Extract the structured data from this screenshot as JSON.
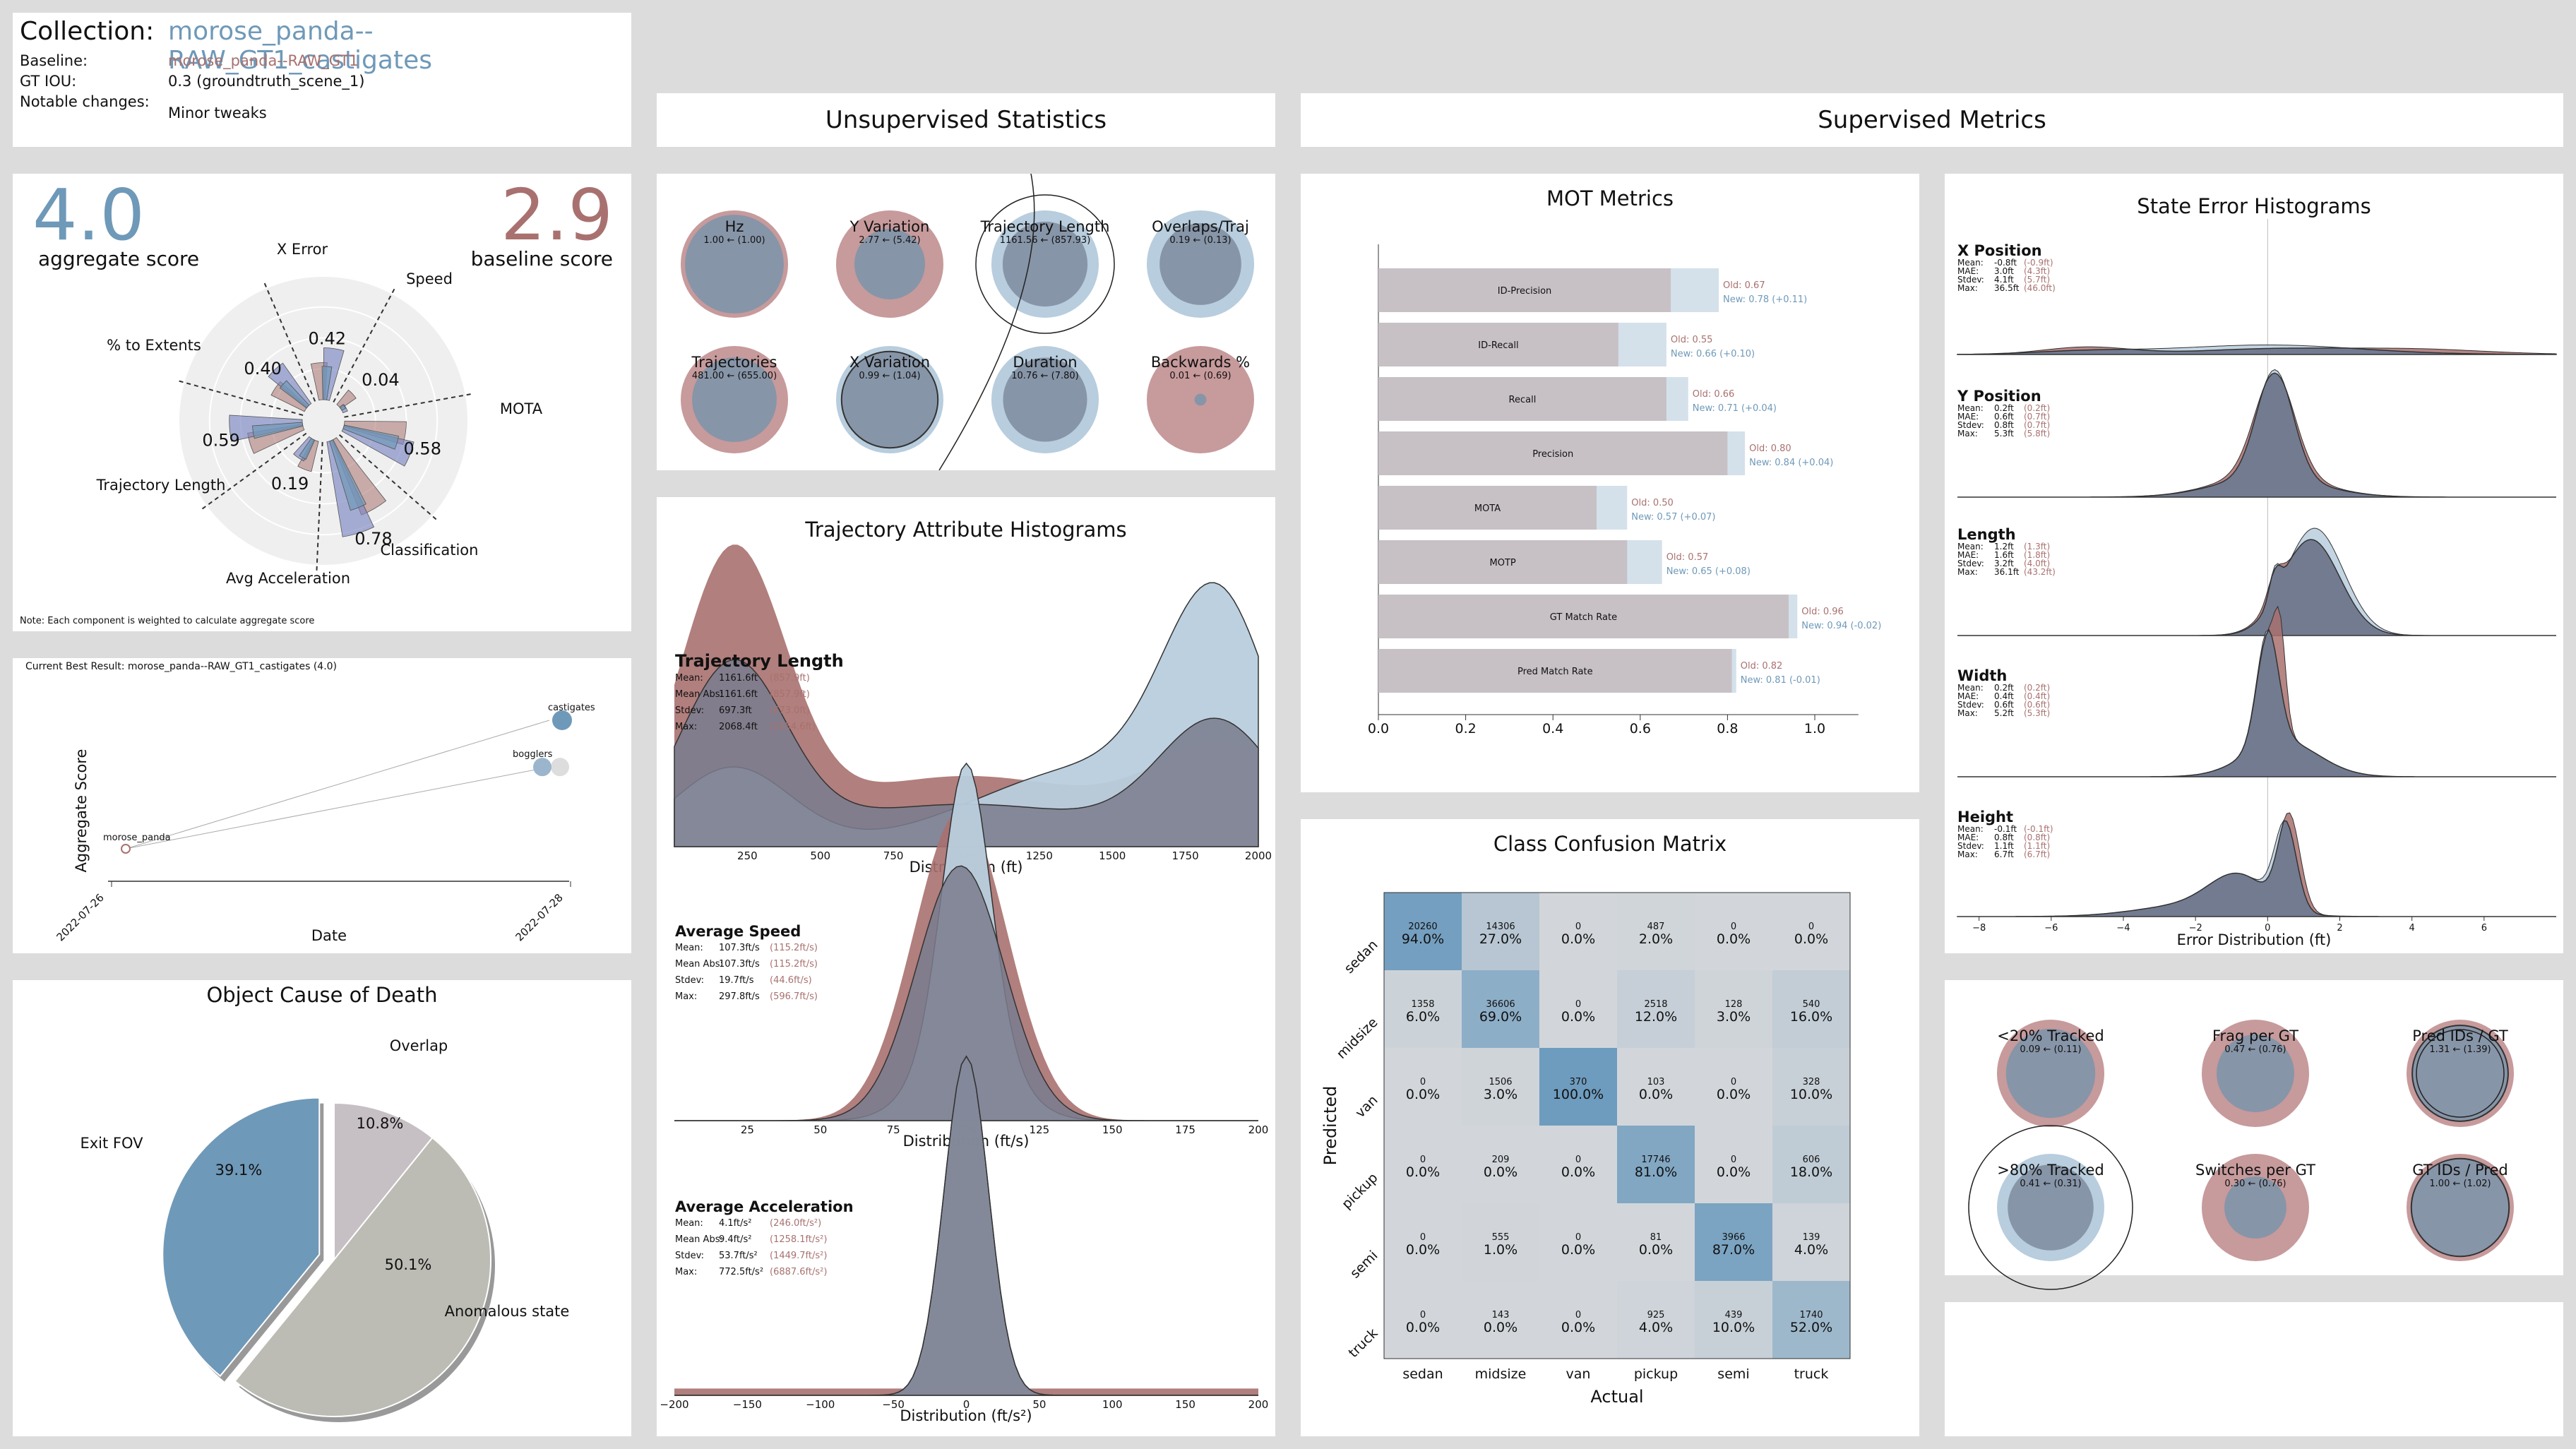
{
  "header": {
    "collection_label": "Collection:",
    "collection_name": "morose_panda--RAW_GT1_castigates",
    "baseline_label": "Baseline:",
    "baseline_value": "morose_panda--RAW_GT1",
    "gtiou_label": "GT IOU:",
    "gtiou_value": "0.3 (groundtruth_scene_1)",
    "changes_label": "Notable changes:",
    "changes_value": "Minor tweaks"
  },
  "colors": {
    "blue": "#6f99b8",
    "red": "#a8716f",
    "dark": "#6b7388",
    "light_blue": "#b8cddd",
    "grey": "#c6bfc4"
  },
  "sections": {
    "unsupervised": "Unsupervised Statistics",
    "supervised": "Supervised Metrics"
  },
  "aggregate": {
    "score": "4.0",
    "score_label": "aggregate score",
    "baseline": "2.9",
    "baseline_label": "baseline score",
    "note": "Note: Each component is weighted to calculate aggregate score",
    "chart_data": {
      "type": "polar-bar",
      "axes": [
        "X Error",
        "Speed",
        "MOTA",
        "Classification",
        "Avg Acceleration",
        "Trajectory Length",
        "% to Extents"
      ],
      "value_labels": [
        "0.42",
        "0.04",
        "0.58",
        "0.78",
        "0.19",
        "0.59",
        "0.40"
      ],
      "current": [
        0.42,
        0.04,
        0.58,
        0.78,
        0.19,
        0.59,
        0.4
      ],
      "baseline": [
        0.3,
        0.15,
        0.5,
        0.65,
        0.25,
        0.45,
        0.3
      ]
    }
  },
  "history": {
    "title": "Current Best Result: morose_panda--RAW_GT1_castigates (4.0)",
    "chart_data": {
      "type": "scatter",
      "xlabel": "Date",
      "ylabel": "Aggregate Score",
      "xticks": [
        "2022-07-26",
        "2022-07-28"
      ],
      "points": [
        {
          "label": "morose_panda",
          "x": "2022-07-26",
          "y": 2.9
        },
        {
          "label": "castigates",
          "x": "2022-07-28",
          "y": 4.0
        },
        {
          "label": "bogglers",
          "x": "2022-07-28",
          "y": 3.6
        }
      ]
    }
  },
  "death": {
    "title": "Object Cause of Death",
    "chart_data": {
      "type": "pie",
      "labels": [
        "Overlap",
        "Anomalous state",
        "Exit FOV"
      ],
      "values": [
        10.8,
        50.1,
        39.1
      ],
      "value_labels": [
        "10.8%",
        "50.1%",
        "39.1%"
      ]
    }
  },
  "unsup": {
    "bubbles": [
      {
        "name": "Hz",
        "value": "1.00  ← (1.00)",
        "cur": 1.0,
        "base": 1.0
      },
      {
        "name": "Y Variation",
        "value": "2.77  ← (5.42)",
        "cur": 2.77,
        "base": 5.42
      },
      {
        "name": "Trajectory Length",
        "value": "1161.56  ← (857.93)",
        "cur": 1161.56,
        "base": 857.93
      },
      {
        "name": "Overlaps/Traj",
        "value": "0.19  ← (0.13)",
        "cur": 0.19,
        "base": 0.13
      },
      {
        "name": "Trajectories",
        "value": "481.00  ← (655.00)",
        "cur": 481.0,
        "base": 655.0
      },
      {
        "name": "X Variation",
        "value": "0.99  ← (1.04)",
        "cur": 0.99,
        "base": 1.04
      },
      {
        "name": "Duration",
        "value": "10.76  ← (7.80)",
        "cur": 10.76,
        "base": 7.8
      },
      {
        "name": "Backwards %",
        "value": "0.01  ← (0.69)",
        "cur": 0.01,
        "base": 0.69
      }
    ]
  },
  "traj": {
    "title": "Trajectory Attribute Histograms",
    "charts": [
      {
        "name": "Trajectory Length",
        "xlabel": "Distribution (ft)",
        "xticks": [
          "250",
          "500",
          "750",
          "1000",
          "1250",
          "1500",
          "1750",
          "2000"
        ],
        "stats": [
          [
            "Mean:",
            "1161.6ft",
            "(857.9ft)"
          ],
          [
            "Mean Abs:",
            "1161.6ft",
            "(857.9ft)"
          ],
          [
            "Stdev:",
            "697.3ft",
            "(673.0ft)"
          ],
          [
            "Max:",
            "2068.4ft",
            "(2054.6ft)"
          ]
        ]
      },
      {
        "name": "Average Speed",
        "xlabel": "Distribution (ft/s)",
        "xticks": [
          "25",
          "50",
          "75",
          "100",
          "125",
          "150",
          "175",
          "200"
        ],
        "stats": [
          [
            "Mean:",
            "107.3ft/s",
            "(115.2ft/s)"
          ],
          [
            "Mean Abs:",
            "107.3ft/s",
            "(115.2ft/s)"
          ],
          [
            "Stdev:",
            "19.7ft/s",
            "(44.6ft/s)"
          ],
          [
            "Max:",
            "297.8ft/s",
            "(596.7ft/s)"
          ]
        ]
      },
      {
        "name": "Average Acceleration",
        "xlabel": "Distribution (ft/s²)",
        "xticks": [
          "−200",
          "−150",
          "−100",
          "−50",
          "0",
          "50",
          "100",
          "150",
          "200"
        ],
        "stats": [
          [
            "Mean:",
            "4.1ft/s²",
            "(246.0ft/s²)"
          ],
          [
            "Mean Abs:",
            "9.4ft/s²",
            "(1258.1ft/s²)"
          ],
          [
            "Stdev:",
            "53.7ft/s²",
            "(1449.7ft/s²)"
          ],
          [
            "Max:",
            "772.5ft/s²",
            "(6887.6ft/s²)"
          ]
        ]
      }
    ]
  },
  "mot": {
    "title": "MOT Metrics",
    "chart_data": {
      "type": "bar",
      "xticks": [
        "0.0",
        "0.2",
        "0.4",
        "0.6",
        "0.8",
        "1.0"
      ],
      "bars": [
        {
          "name": "ID-Precision",
          "old": 0.67,
          "new": 0.78,
          "old_label": "Old: 0.67",
          "new_label": "New: 0.78 (+0.11)"
        },
        {
          "name": "ID-Recall",
          "old": 0.55,
          "new": 0.66,
          "old_label": "Old: 0.55",
          "new_label": "New: 0.66 (+0.10)"
        },
        {
          "name": "Recall",
          "old": 0.66,
          "new": 0.71,
          "old_label": "Old: 0.66",
          "new_label": "New: 0.71 (+0.04)"
        },
        {
          "name": "Precision",
          "old": 0.8,
          "new": 0.84,
          "old_label": "Old: 0.80",
          "new_label": "New: 0.84 (+0.04)"
        },
        {
          "name": "MOTA",
          "old": 0.5,
          "new": 0.57,
          "old_label": "Old: 0.50",
          "new_label": "New: 0.57 (+0.07)"
        },
        {
          "name": "MOTP",
          "old": 0.57,
          "new": 0.65,
          "old_label": "Old: 0.57",
          "new_label": "New: 0.65 (+0.08)"
        },
        {
          "name": "GT Match Rate",
          "old": 0.96,
          "new": 0.94,
          "old_label": "Old: 0.96",
          "new_label": "New: 0.94 (-0.02)"
        },
        {
          "name": "Pred Match Rate",
          "old": 0.82,
          "new": 0.81,
          "old_label": "Old: 0.82",
          "new_label": "New: 0.81 (-0.01)"
        }
      ]
    }
  },
  "confusion": {
    "title": "Class Confusion Matrix",
    "chart_data": {
      "type": "heatmap",
      "xlabel": "Actual",
      "ylabel": "Predicted",
      "classes": [
        "sedan",
        "midsize",
        "van",
        "pickup",
        "semi",
        "truck"
      ],
      "counts": [
        [
          "20260",
          "14306",
          "0",
          "487",
          "0",
          "0"
        ],
        [
          "1358",
          "36606",
          "0",
          "2518",
          "128",
          "540"
        ],
        [
          "0",
          "1506",
          "370",
          "103",
          "0",
          "328"
        ],
        [
          "0",
          "209",
          "0",
          "17746",
          "0",
          "606"
        ],
        [
          "0",
          "555",
          "0",
          "81",
          "3966",
          "139"
        ],
        [
          "0",
          "143",
          "0",
          "925",
          "439",
          "1740"
        ]
      ],
      "pct": [
        [
          "94.0%",
          "27.0%",
          "0.0%",
          "2.0%",
          "0.0%",
          "0.0%"
        ],
        [
          "6.0%",
          "69.0%",
          "0.0%",
          "12.0%",
          "3.0%",
          "16.0%"
        ],
        [
          "0.0%",
          "3.0%",
          "100.0%",
          "0.0%",
          "0.0%",
          "10.0%"
        ],
        [
          "0.0%",
          "0.0%",
          "0.0%",
          "81.0%",
          "0.0%",
          "18.0%"
        ],
        [
          "0.0%",
          "1.0%",
          "0.0%",
          "0.0%",
          "87.0%",
          "4.0%"
        ],
        [
          "0.0%",
          "0.0%",
          "0.0%",
          "4.0%",
          "10.0%",
          "52.0%"
        ]
      ],
      "values": [
        [
          94,
          27,
          0,
          2,
          0,
          0
        ],
        [
          6,
          69,
          0,
          12,
          3,
          16
        ],
        [
          0,
          3,
          100,
          0,
          0,
          10
        ],
        [
          0,
          0,
          0,
          81,
          0,
          18
        ],
        [
          0,
          1,
          0,
          0,
          87,
          4
        ],
        [
          0,
          0,
          0,
          4,
          10,
          52
        ]
      ]
    }
  },
  "state": {
    "title": "State Error Histograms",
    "xlabel": "Error Distribution (ft)",
    "xticks": [
      "−8",
      "−6",
      "−4",
      "−2",
      "0",
      "2",
      "4",
      "6"
    ],
    "charts": [
      {
        "name": "X Position",
        "stats": [
          [
            "Mean:",
            "-0.8ft",
            "(-0.9ft)"
          ],
          [
            "MAE:",
            "3.0ft",
            "(4.3ft)"
          ],
          [
            "Stdev:",
            "4.1ft",
            "(5.7ft)"
          ],
          [
            "Max:",
            "36.5ft",
            "(46.0ft)"
          ]
        ]
      },
      {
        "name": "Y Position",
        "stats": [
          [
            "Mean:",
            "0.2ft",
            "(0.2ft)"
          ],
          [
            "MAE:",
            "0.6ft",
            "(0.7ft)"
          ],
          [
            "Stdev:",
            "0.8ft",
            "(0.7ft)"
          ],
          [
            "Max:",
            "5.3ft",
            "(5.8ft)"
          ]
        ]
      },
      {
        "name": "Length",
        "stats": [
          [
            "Mean:",
            "1.2ft",
            "(1.3ft)"
          ],
          [
            "MAE:",
            "1.6ft",
            "(1.8ft)"
          ],
          [
            "Stdev:",
            "3.2ft",
            "(4.0ft)"
          ],
          [
            "Max:",
            "36.1ft",
            "(43.2ft)"
          ]
        ]
      },
      {
        "name": "Width",
        "stats": [
          [
            "Mean:",
            "0.2ft",
            "(0.2ft)"
          ],
          [
            "MAE:",
            "0.4ft",
            "(0.4ft)"
          ],
          [
            "Stdev:",
            "0.6ft",
            "(0.6ft)"
          ],
          [
            "Max:",
            "5.2ft",
            "(5.3ft)"
          ]
        ]
      },
      {
        "name": "Height",
        "stats": [
          [
            "Mean:",
            "-0.1ft",
            "(-0.1ft)"
          ],
          [
            "MAE:",
            "0.8ft",
            "(0.8ft)"
          ],
          [
            "Stdev:",
            "1.1ft",
            "(1.1ft)"
          ],
          [
            "Max:",
            "6.7ft",
            "(6.7ft)"
          ]
        ]
      }
    ]
  },
  "tracks": {
    "bubbles": [
      {
        "name": "<20% Tracked",
        "value": "0.09  ← (0.11)",
        "cur": 0.09,
        "base": 0.11
      },
      {
        "name": "Frag per GT",
        "value": "0.47  ← (0.76)",
        "cur": 0.47,
        "base": 0.76
      },
      {
        "name": "Pred IDs / GT",
        "value": "1.31  ← (1.39)",
        "cur": 1.31,
        "base": 1.39
      },
      {
        "name": ">80% Tracked",
        "value": "0.41  ← (0.31)",
        "cur": 0.41,
        "base": 0.31
      },
      {
        "name": "Switches per GT",
        "value": "0.30  ← (0.76)",
        "cur": 0.3,
        "base": 0.76
      },
      {
        "name": "GT IDs / Pred",
        "value": "1.00  ← (1.02)",
        "cur": 1.0,
        "base": 1.02
      }
    ]
  }
}
